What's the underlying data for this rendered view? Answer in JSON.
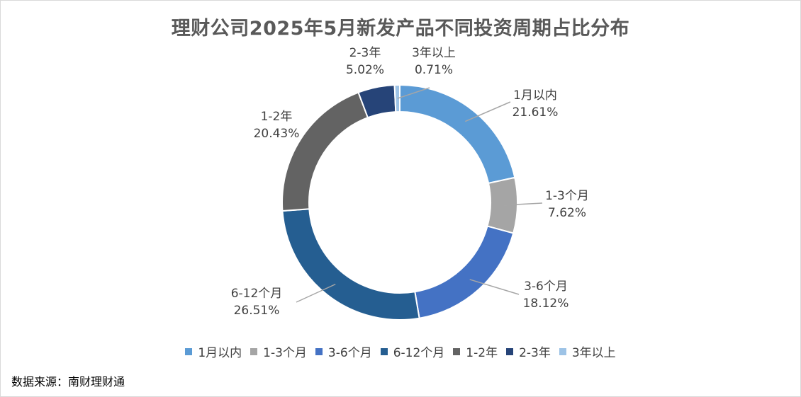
{
  "source": "数据来源：南财理财通",
  "chart_data": {
    "type": "pie",
    "variant": "donut",
    "title": "理财公司2025年5月新发产品不同投资周期占比分布",
    "grid": false,
    "legend_position": "bottom",
    "categories": [
      "1月以内",
      "1-3个月",
      "3-6个月",
      "6-12个月",
      "1-2年",
      "2-3年",
      "3年以上"
    ],
    "values": [
      21.61,
      7.62,
      18.12,
      26.51,
      20.43,
      5.02,
      0.71
    ],
    "value_labels": [
      "21.61%",
      "7.62%",
      "18.12%",
      "26.51%",
      "20.43%",
      "5.02%",
      "0.71%"
    ],
    "colors": [
      "#5B9BD5",
      "#A5A5A5",
      "#4472C4",
      "#255E91",
      "#636363",
      "#264478",
      "#9DC3E6"
    ]
  }
}
